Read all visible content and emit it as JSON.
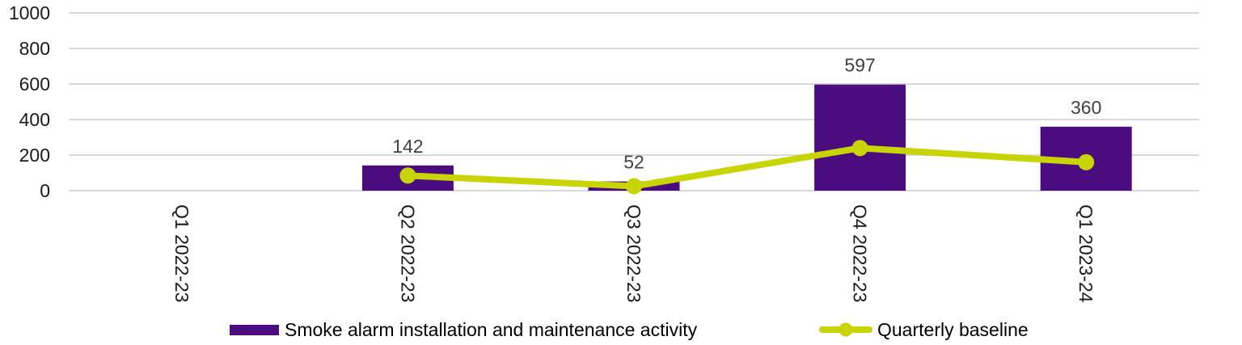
{
  "chart_data": {
    "type": "bar",
    "subtype": "combo-bar-line",
    "categories": [
      "Q1 2022-23",
      "Q2 2022-23",
      "Q3 2022-23",
      "Q4 2022-23",
      "Q1 2023-24"
    ],
    "series": [
      {
        "name": "Smoke alarm installation and maintenance activity",
        "kind": "bar",
        "color": "#4B0C80",
        "values": [
          null,
          142,
          52,
          597,
          360
        ],
        "data_labels": [
          "",
          "142",
          "52",
          "597",
          "360"
        ]
      },
      {
        "name": "Quarterly baseline",
        "kind": "line",
        "color": "#C8D404",
        "values": [
          null,
          85,
          25,
          240,
          160
        ]
      }
    ],
    "title": "",
    "xlabel": "",
    "ylabel": "",
    "ylim": [
      0,
      1000
    ],
    "yticks": [
      0,
      200,
      400,
      600,
      800,
      1000
    ],
    "grid": true,
    "gridline_color": "#D9D9D9",
    "axis_tick_color": "#1A1A1A",
    "data_label_color": "#404040",
    "legend_position": "bottom"
  }
}
